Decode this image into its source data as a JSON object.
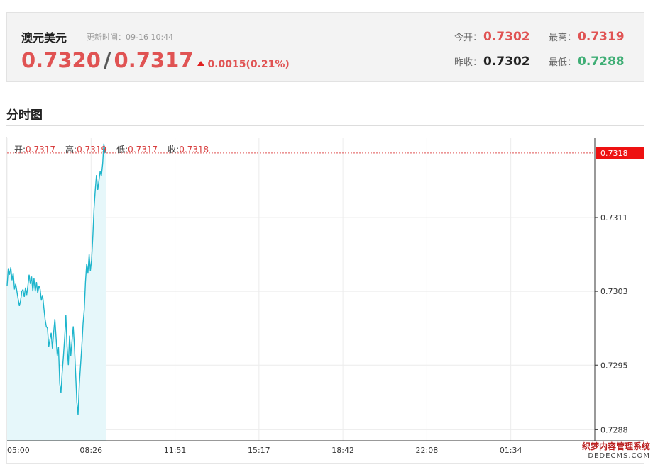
{
  "quote": {
    "name": "澳元美元",
    "update_label": "更新时间：09-16 10:44",
    "bid": "0.7320",
    "separator": "/",
    "ask": "0.7317",
    "change": "0.0015(0.21%)",
    "open_label": "今开：",
    "open": "0.7302",
    "high_label": "最高：",
    "high": "0.7319",
    "prev_close_label": "昨收：",
    "prev_close": "0.7302",
    "low_label": "最低：",
    "low": "0.7288"
  },
  "section_title": "分时图",
  "ohlc": {
    "open_label": "开:",
    "open": "0.7317",
    "high_label": "高:",
    "high": "0.7319",
    "low_label": "低:",
    "low": "0.7317",
    "close_label": "收:",
    "close": "0.7318"
  },
  "colors": {
    "up": "#e05353",
    "down": "#3fae75",
    "line": "#1eb5cc",
    "fill": "#e6f7fa",
    "current_tag": "#ee1111"
  },
  "chart_data": {
    "type": "area",
    "x_ticks": [
      "05:00",
      "08:26",
      "11:51",
      "15:17",
      "18:42",
      "22:08",
      "01:34"
    ],
    "y_ticks": [
      "0.7311",
      "0.7303",
      "0.7295",
      "0.7288"
    ],
    "current_value": "0.7318",
    "ylim": [
      0.72868,
      0.73196
    ],
    "x_range_minutes": [
      0,
      1440
    ],
    "series": [
      {
        "values": [
          [
            0,
            0.73036
          ],
          [
            3,
            0.73055
          ],
          [
            6,
            0.73048
          ],
          [
            9,
            0.73056
          ],
          [
            12,
            0.73042
          ],
          [
            15,
            0.7305
          ],
          [
            18,
            0.73032
          ],
          [
            21,
            0.73038
          ],
          [
            24,
            0.7303
          ],
          [
            27,
            0.73022
          ],
          [
            30,
            0.73014
          ],
          [
            33,
            0.7302
          ],
          [
            36,
            0.7303
          ],
          [
            39,
            0.73032
          ],
          [
            42,
            0.73024
          ],
          [
            45,
            0.73034
          ],
          [
            48,
            0.73026
          ],
          [
            51,
            0.73036
          ],
          [
            54,
            0.73048
          ],
          [
            57,
            0.73038
          ],
          [
            60,
            0.73046
          ],
          [
            63,
            0.7303
          ],
          [
            66,
            0.73044
          ],
          [
            69,
            0.7303
          ],
          [
            72,
            0.7304
          ],
          [
            75,
            0.73028
          ],
          [
            78,
            0.73036
          ],
          [
            81,
            0.73032
          ],
          [
            84,
            0.7302
          ],
          [
            87,
            0.73026
          ],
          [
            90,
            0.73012
          ],
          [
            93,
            0.73
          ],
          [
            96,
            0.72992
          ],
          [
            99,
            0.7299
          ],
          [
            102,
            0.7297
          ],
          [
            105,
            0.72978
          ],
          [
            108,
            0.72985
          ],
          [
            111,
            0.72968
          ],
          [
            114,
            0.72985
          ],
          [
            117,
            0.73
          ],
          [
            120,
            0.7298
          ],
          [
            123,
            0.7296
          ],
          [
            126,
            0.7297
          ],
          [
            129,
            0.7293
          ],
          [
            132,
            0.7292
          ],
          [
            135,
            0.72942
          ],
          [
            138,
            0.7296
          ],
          [
            141,
            0.7298
          ],
          [
            144,
            0.73004
          ],
          [
            147,
            0.7297
          ],
          [
            150,
            0.7295
          ],
          [
            153,
            0.72982
          ],
          [
            156,
            0.7296
          ],
          [
            159,
            0.72976
          ],
          [
            162,
            0.72992
          ],
          [
            165,
            0.7297
          ],
          [
            168,
            0.7294
          ],
          [
            171,
            0.7291
          ],
          [
            174,
            0.72896
          ],
          [
            177,
            0.7293
          ],
          [
            180,
            0.7295
          ],
          [
            183,
            0.7297
          ],
          [
            186,
            0.72995
          ],
          [
            189,
            0.7301
          ],
          [
            192,
            0.7304
          ],
          [
            195,
            0.7306
          ],
          [
            198,
            0.7305
          ],
          [
            201,
            0.7307
          ],
          [
            204,
            0.73052
          ],
          [
            207,
            0.73064
          ],
          [
            210,
            0.7309
          ],
          [
            213,
            0.7312
          ],
          [
            216,
            0.7314
          ],
          [
            219,
            0.73156
          ],
          [
            222,
            0.7314
          ],
          [
            225,
            0.7315
          ],
          [
            228,
            0.7316
          ],
          [
            231,
            0.73155
          ],
          [
            234,
            0.73168
          ],
          [
            237,
            0.7319
          ],
          [
            240,
            0.7318
          ],
          [
            243,
            0.73184
          ]
        ]
      }
    ]
  },
  "watermark": {
    "text": "织梦内容管理系统",
    "sub": "DEDECMS.COM"
  }
}
